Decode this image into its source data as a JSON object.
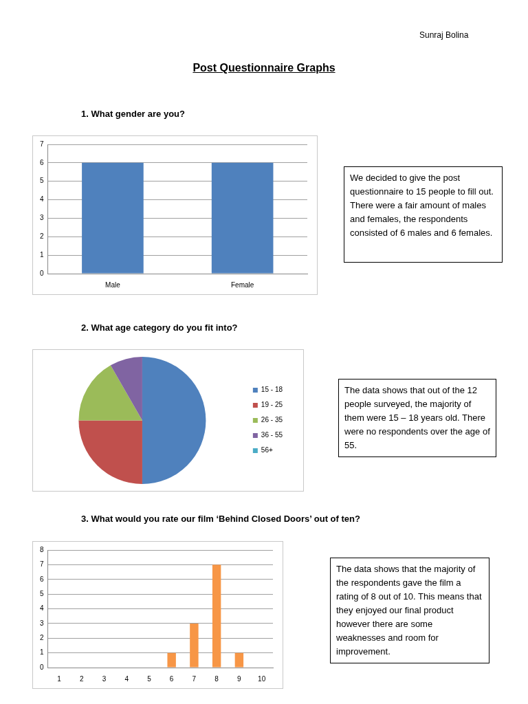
{
  "chart_data": [
    {
      "type": "bar",
      "title": "1.   What gender are you?",
      "categories": [
        "Male",
        "Female"
      ],
      "values": [
        6,
        6
      ],
      "color": "#4f81bd",
      "ylim": [
        0,
        7
      ],
      "yticks": [
        0,
        1,
        2,
        3,
        4,
        5,
        6,
        7
      ],
      "grid": "y",
      "annotations": [
        "Sunraj Bolina",
        "Post Questionnaire Graphs",
        "We decided to give the post questionnaire to 15 people to fill out. There were a fair amount of males and females, the respondents consisted of 6 males and 6 females."
      ]
    },
    {
      "type": "pie",
      "title": "2.   What age category do you fit into?",
      "categories": [
        "15 - 18",
        "19 - 25",
        "26 - 35",
        "36 - 55",
        "56+"
      ],
      "values": [
        50,
        25,
        16.7,
        8.3,
        0
      ],
      "colors": [
        "#4f81bd",
        "#c0504d",
        "#9bbb59",
        "#8064a2",
        "#4bacc6"
      ],
      "legend": "right",
      "annotations": [
        "The data shows that out of the 12 people surveyed, the majority of them were 15 – 18 years old. There were no respondents over the age of 55."
      ]
    },
    {
      "type": "bar",
      "title": "3.   What would you rate our film ‘Behind Closed Doors’ out of ten?",
      "categories": [
        "1",
        "2",
        "3",
        "4",
        "5",
        "6",
        "7",
        "8",
        "9",
        "10"
      ],
      "values": [
        0,
        0,
        0,
        0,
        0,
        1,
        3,
        7,
        1,
        0
      ],
      "color": "#f79646",
      "ylim": [
        0,
        8
      ],
      "yticks": [
        0,
        1,
        2,
        3,
        4,
        5,
        6,
        7,
        8
      ],
      "grid": "y",
      "annotations": [
        "The data shows that the majority of the respondents gave the film a rating of 8 out of 10. This means that they enjoyed our final product however there are some weaknesses and room for improvement."
      ]
    }
  ]
}
